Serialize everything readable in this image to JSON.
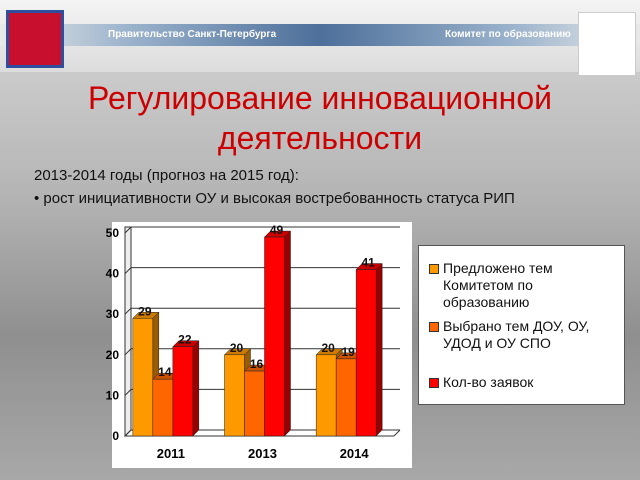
{
  "header": {
    "left": "Правительство Санкт-Петербурга",
    "right": "Комитет по образованию"
  },
  "title": "Регулирование инновационной деятельности",
  "subtitle": "2013-2014 годы (прогноз на 2015 год):",
  "bullet": "рост инициативности ОУ и высокая востребованность статуса РИП",
  "chart_data": {
    "type": "bar",
    "categories": [
      "2011",
      "2013",
      "2014"
    ],
    "series": [
      {
        "name": "Предложено тем Комитетом по образованию",
        "color": "#ff9900",
        "values": [
          29,
          20,
          20
        ]
      },
      {
        "name": "Выбрано тем ДОУ, ОУ, УДОД и ОУ СПО",
        "color": "#ff6600",
        "values": [
          14,
          16,
          19
        ]
      },
      {
        "name": "Кол-во заявок",
        "color": "#ff0000",
        "values": [
          22,
          49,
          41
        ]
      }
    ],
    "ylim": [
      0,
      50
    ],
    "yticks": [
      0,
      10,
      20,
      30,
      40,
      50
    ],
    "grid": true,
    "legend": "right"
  }
}
